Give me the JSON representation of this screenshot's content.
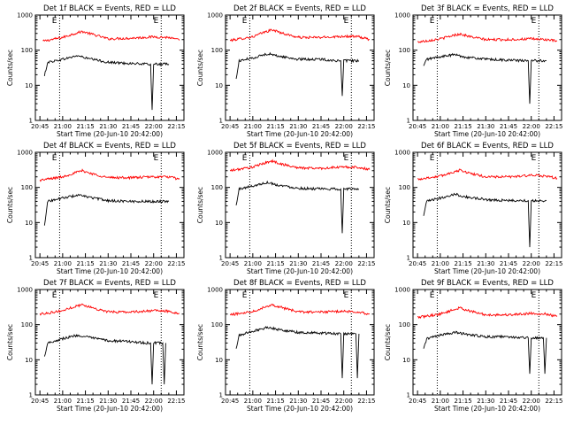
{
  "chart_data": [
    {
      "type": "line",
      "title": "Det 1f BLACK = Events, RED = LLD",
      "xlabel": "Start Time (20-Jun-10 20:42:00)",
      "ylabel": "Counts/sec",
      "x_ticks": [
        "20:45",
        "21:00",
        "21:15",
        "21:30",
        "21:45",
        "22:00",
        "22:15"
      ],
      "y_ticks": [
        "1",
        "10",
        "100",
        "1000"
      ],
      "y_scale": "log",
      "ylim": [
        1,
        1000
      ],
      "xlim": [
        "20:42",
        "22:20"
      ],
      "vlines": [
        "20:58",
        "22:05"
      ],
      "markers": [
        "E",
        "E"
      ],
      "series": [
        {
          "color": "#ff0000",
          "x": [
            "20:47",
            "21:00",
            "21:08",
            "21:13",
            "21:20",
            "21:30",
            "21:45",
            "22:00",
            "22:10",
            "22:17"
          ],
          "y": [
            180,
            230,
            300,
            340,
            280,
            210,
            220,
            240,
            230,
            190
          ]
        },
        {
          "color": "#000000",
          "x": [
            "20:48",
            "20:50",
            "21:00",
            "21:10",
            "21:15",
            "21:30",
            "21:45",
            "21:55",
            "21:58",
            "21:59",
            "22:00",
            "22:10"
          ],
          "y": [
            18,
            45,
            55,
            70,
            60,
            45,
            42,
            40,
            40,
            2,
            40,
            40
          ]
        }
      ]
    },
    {
      "type": "line",
      "title": "Det 2f BLACK = Events, RED = LLD",
      "xlabel": "Start Time (20-Jun-10 20:42:00)",
      "ylabel": "Counts/sec",
      "x_ticks": [
        "20:45",
        "21:00",
        "21:15",
        "21:30",
        "21:45",
        "22:00",
        "22:15"
      ],
      "y_ticks": [
        "1",
        "10",
        "100",
        "1000"
      ],
      "y_scale": "log",
      "ylim": [
        1,
        1000
      ],
      "xlim": [
        "20:42",
        "22:20"
      ],
      "vlines": [
        "20:58",
        "22:05"
      ],
      "markers": [
        "E",
        "E"
      ],
      "series": [
        {
          "color": "#ff0000",
          "x": [
            "20:45",
            "21:00",
            "21:08",
            "21:13",
            "21:20",
            "21:30",
            "21:45",
            "22:00",
            "22:10",
            "22:17"
          ],
          "y": [
            190,
            240,
            330,
            380,
            300,
            230,
            230,
            250,
            240,
            200
          ]
        },
        {
          "color": "#000000",
          "x": [
            "20:49",
            "20:51",
            "21:00",
            "21:10",
            "21:15",
            "21:30",
            "21:45",
            "21:55",
            "21:58",
            "21:59",
            "22:00",
            "22:10"
          ],
          "y": [
            15,
            50,
            60,
            80,
            70,
            55,
            55,
            50,
            50,
            5,
            50,
            50
          ]
        }
      ]
    },
    {
      "type": "line",
      "title": "Det 3f BLACK = Events, RED = LLD",
      "xlabel": "Start Time (20-Jun-10 20:42:00)",
      "ylabel": "Counts/sec",
      "x_ticks": [
        "20:45",
        "21:00",
        "21:15",
        "21:30",
        "21:45",
        "22:00",
        "22:15"
      ],
      "y_ticks": [
        "1",
        "10",
        "100",
        "1000"
      ],
      "y_scale": "log",
      "ylim": [
        1,
        1000
      ],
      "xlim": [
        "20:42",
        "22:20"
      ],
      "vlines": [
        "20:58",
        "22:05"
      ],
      "markers": [
        "E",
        "E"
      ],
      "series": [
        {
          "color": "#ff0000",
          "x": [
            "20:45",
            "21:00",
            "21:08",
            "21:13",
            "21:20",
            "21:30",
            "21:45",
            "22:00",
            "22:10",
            "22:17"
          ],
          "y": [
            170,
            210,
            260,
            290,
            240,
            200,
            200,
            210,
            200,
            180
          ]
        },
        {
          "color": "#000000",
          "x": [
            "20:49",
            "20:51",
            "21:00",
            "21:10",
            "21:15",
            "21:30",
            "21:45",
            "21:55",
            "21:58",
            "21:59",
            "22:00",
            "22:10"
          ],
          "y": [
            35,
            55,
            65,
            75,
            65,
            55,
            52,
            50,
            50,
            3,
            50,
            50
          ]
        }
      ]
    },
    {
      "type": "line",
      "title": "Det 4f BLACK = Events, RED = LLD",
      "xlabel": "Start Time (20-Jun-10 20:42:00)",
      "ylabel": "Counts/sec",
      "x_ticks": [
        "20:45",
        "21:00",
        "21:15",
        "21:30",
        "21:45",
        "22:00",
        "22:15"
      ],
      "y_ticks": [
        "1",
        "10",
        "100",
        "1000"
      ],
      "y_scale": "log",
      "ylim": [
        1,
        1000
      ],
      "xlim": [
        "20:42",
        "22:20"
      ],
      "vlines": [
        "20:58",
        "22:05"
      ],
      "markers": [
        "E",
        "E"
      ],
      "series": [
        {
          "color": "#ff0000",
          "x": [
            "20:45",
            "21:00",
            "21:08",
            "21:13",
            "21:20",
            "21:30",
            "21:45",
            "22:00",
            "22:10",
            "22:17"
          ],
          "y": [
            160,
            200,
            260,
            300,
            240,
            190,
            190,
            200,
            200,
            170
          ]
        },
        {
          "color": "#000000",
          "x": [
            "20:48",
            "20:50",
            "21:00",
            "21:10",
            "21:15",
            "21:30",
            "21:45",
            "22:00",
            "22:10"
          ],
          "y": [
            8,
            40,
            50,
            60,
            55,
            42,
            40,
            40,
            40
          ]
        }
      ]
    },
    {
      "type": "line",
      "title": "Det 5f BLACK = Events, RED = LLD",
      "xlabel": "Start Time (20-Jun-10 20:42:00)",
      "ylabel": "Counts/sec",
      "x_ticks": [
        "20:45",
        "21:00",
        "21:15",
        "21:30",
        "21:45",
        "22:00",
        "22:15"
      ],
      "y_ticks": [
        "1",
        "10",
        "100",
        "1000"
      ],
      "y_scale": "log",
      "ylim": [
        1,
        1000
      ],
      "xlim": [
        "20:42",
        "22:20"
      ],
      "vlines": [
        "20:58",
        "22:05"
      ],
      "markers": [
        "E",
        "E"
      ],
      "series": [
        {
          "color": "#ff0000",
          "x": [
            "20:45",
            "21:00",
            "21:08",
            "21:13",
            "21:20",
            "21:30",
            "21:45",
            "22:00",
            "22:10",
            "22:17"
          ],
          "y": [
            300,
            380,
            500,
            560,
            450,
            360,
            350,
            380,
            370,
            320
          ]
        },
        {
          "color": "#000000",
          "x": [
            "20:49",
            "20:51",
            "21:00",
            "21:10",
            "21:15",
            "21:30",
            "21:45",
            "21:55",
            "21:58",
            "21:59",
            "22:00",
            "22:10"
          ],
          "y": [
            30,
            90,
            110,
            140,
            120,
            95,
            90,
            90,
            90,
            5,
            90,
            90
          ]
        }
      ]
    },
    {
      "type": "line",
      "title": "Det 6f BLACK = Events, RED = LLD",
      "xlabel": "Start Time (20-Jun-10 20:42:00)",
      "ylabel": "Counts/sec",
      "x_ticks": [
        "20:45",
        "21:00",
        "21:15",
        "21:30",
        "21:45",
        "22:00",
        "22:15"
      ],
      "y_ticks": [
        "1",
        "10",
        "100",
        "1000"
      ],
      "y_scale": "log",
      "ylim": [
        1,
        1000
      ],
      "xlim": [
        "20:42",
        "22:20"
      ],
      "vlines": [
        "20:58",
        "22:05"
      ],
      "markers": [
        "E",
        "E"
      ],
      "series": [
        {
          "color": "#ff0000",
          "x": [
            "20:45",
            "21:00",
            "21:08",
            "21:13",
            "21:20",
            "21:30",
            "21:45",
            "22:00",
            "22:10",
            "22:17"
          ],
          "y": [
            170,
            210,
            270,
            310,
            250,
            200,
            200,
            220,
            210,
            180
          ]
        },
        {
          "color": "#000000",
          "x": [
            "20:49",
            "20:51",
            "21:00",
            "21:10",
            "21:15",
            "21:30",
            "21:45",
            "21:55",
            "21:58",
            "21:59",
            "22:00",
            "22:10"
          ],
          "y": [
            15,
            40,
            50,
            65,
            55,
            45,
            42,
            42,
            42,
            2,
            42,
            42
          ]
        }
      ]
    },
    {
      "type": "line",
      "title": "Det 7f BLACK = Events, RED = LLD",
      "xlabel": "Start Time (20-Jun-10 20:42:00)",
      "ylabel": "Counts/sec",
      "x_ticks": [
        "20:45",
        "21:00",
        "21:15",
        "21:30",
        "21:45",
        "22:00",
        "22:15"
      ],
      "y_ticks": [
        "1",
        "10",
        "100",
        "1000"
      ],
      "y_scale": "log",
      "ylim": [
        1,
        1000
      ],
      "xlim": [
        "20:42",
        "22:20"
      ],
      "vlines": [
        "20:58",
        "22:05"
      ],
      "markers": [
        "E",
        "E"
      ],
      "series": [
        {
          "color": "#ff0000",
          "x": [
            "20:45",
            "21:00",
            "21:08",
            "21:13",
            "21:20",
            "21:30",
            "21:45",
            "22:00",
            "22:10",
            "22:17"
          ],
          "y": [
            200,
            250,
            330,
            370,
            300,
            230,
            230,
            250,
            240,
            210
          ]
        },
        {
          "color": "#000000",
          "x": [
            "20:48",
            "20:50",
            "21:00",
            "21:10",
            "21:15",
            "21:30",
            "21:45",
            "21:55",
            "21:58",
            "21:59",
            "22:00",
            "22:06",
            "22:07",
            "22:08"
          ],
          "y": [
            12,
            30,
            40,
            50,
            45,
            35,
            33,
            30,
            30,
            2,
            30,
            30,
            2,
            30
          ]
        }
      ]
    },
    {
      "type": "line",
      "title": "Det 8f BLACK = Events, RED = LLD",
      "xlabel": "Start Time (20-Jun-10 20:42:00)",
      "ylabel": "Counts/sec",
      "x_ticks": [
        "20:45",
        "21:00",
        "21:15",
        "21:30",
        "21:45",
        "22:00",
        "22:15"
      ],
      "y_ticks": [
        "1",
        "10",
        "100",
        "1000"
      ],
      "y_scale": "log",
      "ylim": [
        1,
        1000
      ],
      "xlim": [
        "20:42",
        "22:20"
      ],
      "vlines": [
        "20:58",
        "22:05"
      ],
      "markers": [
        "E",
        "E"
      ],
      "series": [
        {
          "color": "#ff0000",
          "x": [
            "20:45",
            "21:00",
            "21:08",
            "21:13",
            "21:20",
            "21:30",
            "21:45",
            "22:00",
            "22:10",
            "22:17"
          ],
          "y": [
            190,
            240,
            320,
            370,
            300,
            230,
            230,
            240,
            230,
            200
          ]
        },
        {
          "color": "#000000",
          "x": [
            "20:49",
            "20:51",
            "21:00",
            "21:10",
            "21:15",
            "21:30",
            "21:45",
            "21:55",
            "21:58",
            "21:59",
            "22:00",
            "22:08",
            "22:09",
            "22:10"
          ],
          "y": [
            20,
            50,
            65,
            85,
            75,
            60,
            58,
            55,
            55,
            3,
            55,
            55,
            3,
            55
          ]
        }
      ]
    },
    {
      "type": "line",
      "title": "Det 9f BLACK = Events, RED = LLD",
      "xlabel": "Start Time (20-Jun-10 20:42:00)",
      "ylabel": "Counts/sec",
      "x_ticks": [
        "20:45",
        "21:00",
        "21:15",
        "21:30",
        "21:45",
        "22:00",
        "22:15"
      ],
      "y_ticks": [
        "1",
        "10",
        "100",
        "1000"
      ],
      "y_scale": "log",
      "ylim": [
        1,
        1000
      ],
      "xlim": [
        "20:42",
        "22:20"
      ],
      "vlines": [
        "20:58",
        "22:05"
      ],
      "markers": [
        "E",
        "E"
      ],
      "series": [
        {
          "color": "#ff0000",
          "x": [
            "20:45",
            "21:00",
            "21:08",
            "21:13",
            "21:20",
            "21:30",
            "21:45",
            "22:00",
            "22:10",
            "22:17"
          ],
          "y": [
            160,
            200,
            260,
            300,
            240,
            190,
            190,
            210,
            200,
            170
          ]
        },
        {
          "color": "#000000",
          "x": [
            "20:49",
            "20:51",
            "21:00",
            "21:10",
            "21:15",
            "21:30",
            "21:45",
            "21:55",
            "21:58",
            "21:59",
            "22:00",
            "22:08",
            "22:09",
            "22:10"
          ],
          "y": [
            20,
            40,
            50,
            60,
            55,
            45,
            45,
            42,
            42,
            4,
            42,
            42,
            4,
            42
          ]
        }
      ]
    }
  ]
}
